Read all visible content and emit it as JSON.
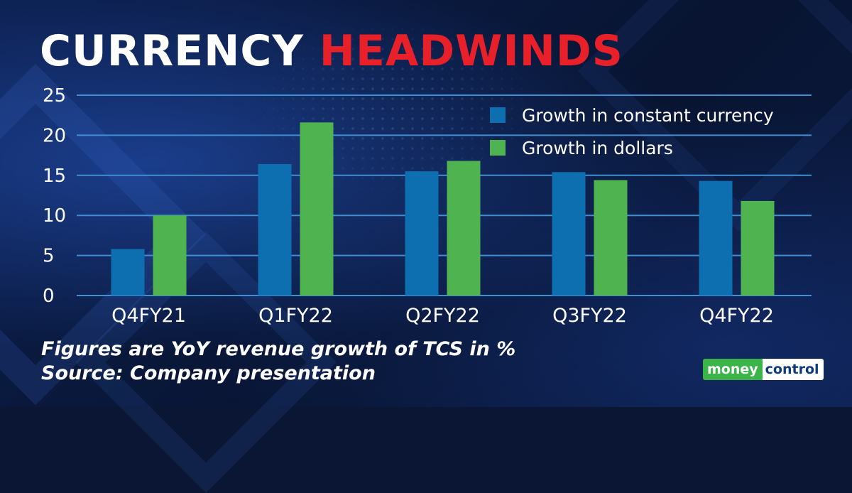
{
  "title": {
    "part1": "CURRENCY",
    "part2": "HEADWINDS"
  },
  "colors": {
    "constant_currency": "#0e6fb0",
    "dollars": "#4fb34f",
    "title_accent": "#e8202a",
    "gridline": "#3f8fd2"
  },
  "chart_data": {
    "type": "bar",
    "categories": [
      "Q4FY21",
      "Q1FY22",
      "Q2FY22",
      "Q3FY22",
      "Q4FY22"
    ],
    "series": [
      {
        "name": "Growth in constant currency",
        "values": [
          5.8,
          16.4,
          15.5,
          15.4,
          14.3
        ]
      },
      {
        "name": "Growth in dollars",
        "values": [
          10.0,
          21.6,
          16.8,
          14.4,
          11.8
        ]
      }
    ],
    "yticks": [
      "0",
      "5",
      "10",
      "15",
      "20",
      "25"
    ],
    "ylim": [
      0,
      25
    ],
    "grid": true,
    "legend_position": "top-right"
  },
  "notes": {
    "line1": "Figures are YoY revenue growth of TCS in %",
    "line2": "Source: Company presentation"
  },
  "logo": {
    "part1": "money",
    "part2": "control"
  }
}
